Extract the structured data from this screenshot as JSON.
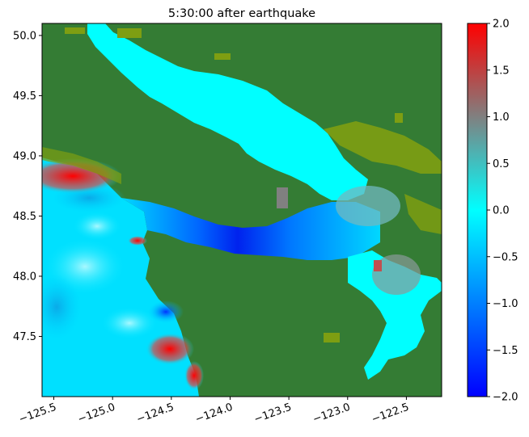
{
  "chart_data": {
    "type": "heatmap",
    "title": "5:30:00 after earthquake",
    "xlabel": "",
    "ylabel": "",
    "xlim": [
      -125.6,
      -122.2
    ],
    "ylim": [
      47.0,
      50.1
    ],
    "x_ticks": [
      -125.5,
      -125.0,
      -124.5,
      -124.0,
      -123.5,
      -123.0,
      -122.5
    ],
    "x_tick_labels": [
      "−125.5",
      "−125.0",
      "−124.5",
      "−124.0",
      "−123.5",
      "−123.0",
      "−122.5"
    ],
    "y_ticks": [
      47.5,
      48.0,
      48.5,
      49.0,
      49.5,
      50.0
    ],
    "y_tick_labels": [
      "47.5",
      "48.0",
      "48.5",
      "49.0",
      "49.5",
      "50.0"
    ],
    "grid": false,
    "colorbar": {
      "range": [
        -2.0,
        2.0
      ],
      "ticks": [
        -2.0,
        -1.5,
        -1.0,
        -0.5,
        0.0,
        0.5,
        1.0,
        1.5,
        2.0
      ],
      "tick_labels": [
        "−2.0",
        "−1.5",
        "−1.0",
        "−0.5",
        "0.0",
        "0.5",
        "1.0",
        "1.5",
        "2.0"
      ],
      "colors": [
        "#0000ff",
        "#00ffff",
        "#808080",
        "#ff0000"
      ]
    },
    "land_color": "#347c34",
    "lowland_color": "#7e9e12"
  }
}
